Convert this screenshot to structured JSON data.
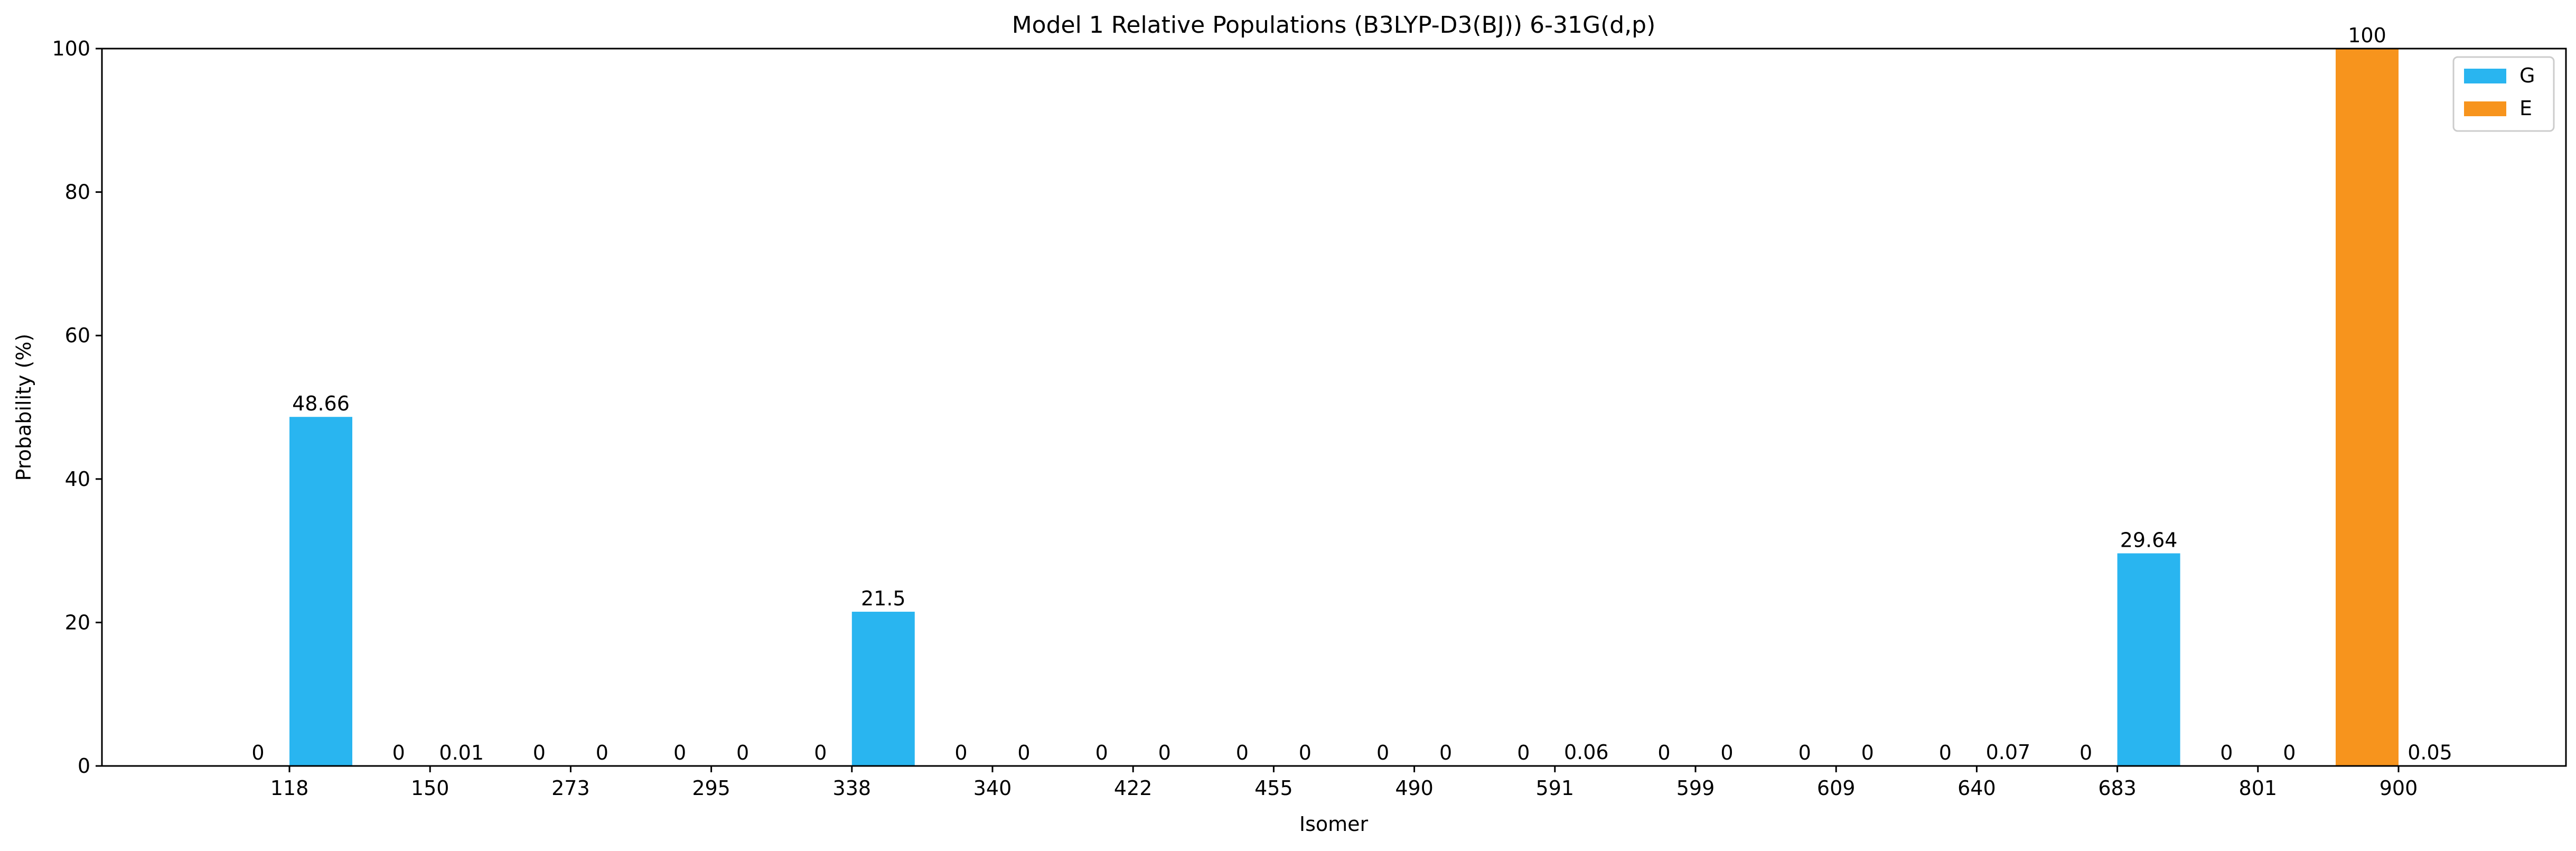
{
  "chart_data": {
    "type": "bar",
    "title": "Model 1 Relative Populations (B3LYP-D3(BJ)) 6-31G(d,p)",
    "xlabel": "Isomer",
    "ylabel": "Probability (%)",
    "ylim": [
      0,
      100
    ],
    "yticks": [
      0,
      20,
      40,
      60,
      80,
      100
    ],
    "grid": false,
    "legend_position": "top-right",
    "categories": [
      "118",
      "150",
      "273",
      "295",
      "338",
      "340",
      "422",
      "455",
      "490",
      "591",
      "599",
      "609",
      "640",
      "683",
      "801",
      "900"
    ],
    "series": [
      {
        "name": "E",
        "color": "#F7941D",
        "values": [
          0,
          0,
          0,
          0,
          0,
          0,
          0,
          0,
          0,
          0,
          0,
          0,
          0,
          0,
          0,
          100
        ],
        "labels": [
          "0",
          "0",
          "0",
          "0",
          "0",
          "0",
          "0",
          "0",
          "0",
          "0",
          "0",
          "0",
          "0",
          "0",
          "0",
          "100"
        ]
      },
      {
        "name": "G",
        "color": "#29B5F0",
        "values": [
          48.66,
          0.01,
          0,
          0,
          21.5,
          0,
          0,
          0,
          0,
          0.06,
          0,
          0,
          0.07,
          29.64,
          0,
          0.05
        ],
        "labels": [
          "48.66",
          "0.01",
          "0",
          "0",
          "21.5",
          "0",
          "0",
          "0",
          "0",
          "0.06",
          "0",
          "0",
          "0.07",
          "29.64",
          "0",
          "0.05"
        ]
      }
    ],
    "legend_order": [
      "G",
      "E"
    ]
  }
}
